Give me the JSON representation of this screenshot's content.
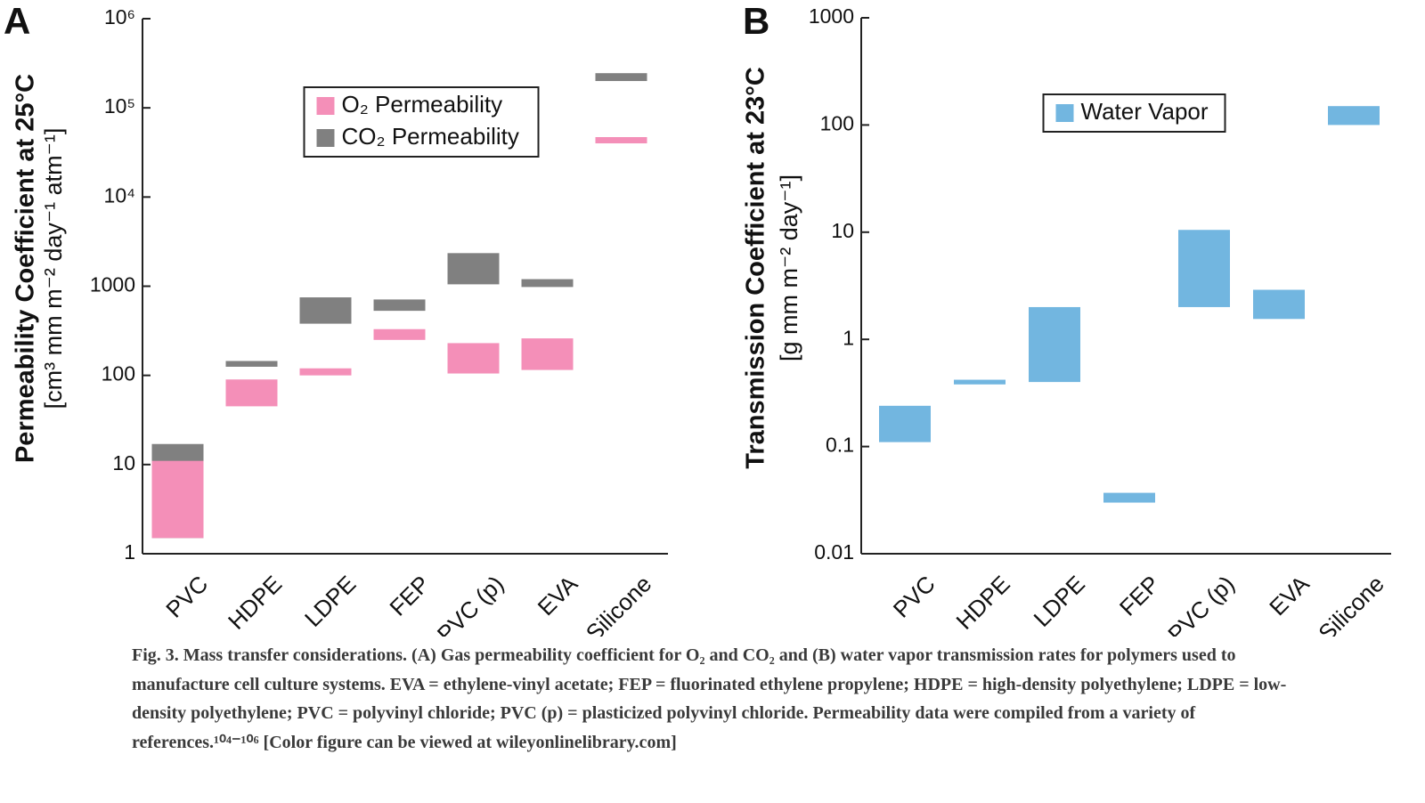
{
  "chart_data": [
    {
      "type": "range-bar",
      "panel": "A",
      "ylabel": "Permeability Coefficient at 25°C",
      "yunits": "[cm³ mm m⁻² day⁻¹ atm⁻¹]",
      "categories": [
        "PVC",
        "HDPE",
        "LDPE",
        "FEP",
        "PVC (p)",
        "EVA",
        "Silicone"
      ],
      "series": [
        {
          "name": "CO₂ Permeability",
          "color": "#5c5c5c",
          "values": [
            [
              1.5,
              17
            ],
            [
              125,
              145
            ],
            [
              380,
              750
            ],
            [
              530,
              710
            ],
            [
              1050,
              2350
            ],
            [
              980,
              1200
            ],
            [
              200000,
              245000
            ]
          ]
        },
        {
          "name": "O₂ Permeability",
          "color": "#f48fb8",
          "values": [
            [
              1.5,
              11
            ],
            [
              45,
              90
            ],
            [
              100,
              120
            ],
            [
              250,
              330
            ],
            [
              105,
              230
            ],
            [
              115,
              260
            ],
            [
              40000,
              47000
            ]
          ]
        }
      ],
      "legend_order": [
        1,
        0
      ],
      "log_y": true,
      "ylim": [
        1,
        1000000
      ],
      "yticks": [
        1,
        10,
        100,
        1000,
        {
          "value": 10000,
          "label": "10⁴"
        },
        {
          "value": 100000,
          "label": "10⁵"
        },
        {
          "value": 1000000,
          "label": "10⁶"
        }
      ],
      "legend": "upper center"
    },
    {
      "type": "range-bar",
      "panel": "B",
      "ylabel": "Transmission Coefficient at 23°C",
      "yunits": "[g mm m⁻² day⁻¹]",
      "categories": [
        "PVC",
        "HDPE",
        "LDPE",
        "FEP",
        "PVC (p)",
        "EVA",
        "Silicone"
      ],
      "series": [
        {
          "name": "Water Vapor",
          "color": "#72b6e0",
          "values": [
            [
              0.11,
              0.24
            ],
            [
              0.38,
              0.42
            ],
            [
              0.4,
              2
            ],
            [
              0.03,
              0.037
            ],
            [
              2,
              10.5
            ],
            [
              1.55,
              2.9
            ],
            [
              100,
              150
            ]
          ]
        }
      ],
      "legend_order": [
        0
      ],
      "log_y": true,
      "ylim": [
        0.01,
        1000
      ],
      "yticks": [
        0.01,
        0.1,
        1,
        10,
        100,
        1000
      ],
      "legend": "upper center"
    }
  ],
  "caption": "Fig. 3. Mass transfer considerations. (A) Gas permeability coefficient for O₂ and CO₂ and (B) water vapor transmission rates for polymers used to manufacture cell culture systems. EVA = ethylene-vinyl acetate; FEP = fluorinated ethylene propylene; HDPE = high-density polyethylene; LDPE = low-density polyethylene; PVC = polyvinyl chloride; PVC (p) = plasticized polyvinyl chloride. Permeability data were compiled from a variety of references.¹⁰⁴⁻¹⁰⁶ [Color figure can be viewed at wileyonlinelibrary.com]"
}
